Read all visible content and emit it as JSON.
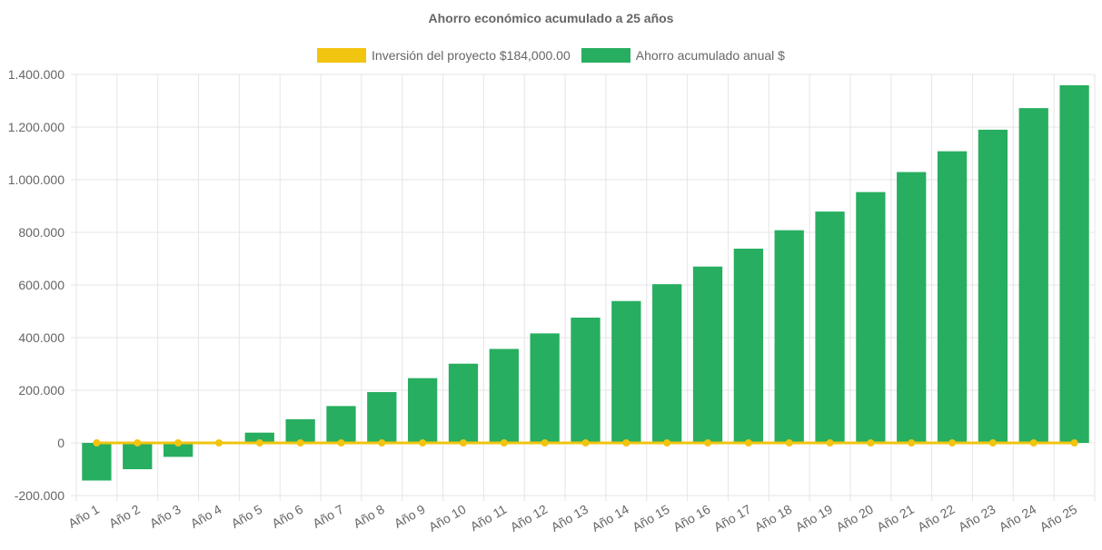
{
  "chart_data": {
    "type": "bar",
    "title": "Ahorro económico acumulado a 25 años",
    "categories": [
      "Año 1",
      "Año 2",
      "Año 3",
      "Año 4",
      "Año 5",
      "Año 6",
      "Año 7",
      "Año 8",
      "Año 9",
      "Año 10",
      "Año 11",
      "Año 12",
      "Año 13",
      "Año 14",
      "Año 15",
      "Año 16",
      "Año 17",
      "Año 18",
      "Año 19",
      "Año 20",
      "Año 21",
      "Año 22",
      "Año 23",
      "Año 24",
      "Año 25"
    ],
    "series": [
      {
        "name": "Inversión del proyecto $184,000.00",
        "type": "line",
        "color": "#f1c40f",
        "values": [
          0,
          0,
          0,
          0,
          0,
          0,
          0,
          0,
          0,
          0,
          0,
          0,
          0,
          0,
          0,
          0,
          0,
          0,
          0,
          0,
          0,
          0,
          0,
          0,
          0
        ]
      },
      {
        "name": "Ahorro acumulado anual $",
        "type": "bar",
        "color": "#27ae60",
        "values": [
          -143000,
          -100000,
          -53000,
          0,
          39000,
          90000,
          140000,
          193000,
          246000,
          301000,
          357000,
          416000,
          476000,
          539000,
          603000,
          670000,
          738000,
          808000,
          879000,
          953000,
          1029000,
          1108000,
          1190000,
          1272000,
          1359000
        ]
      }
    ],
    "y_ticks": [
      "1.400.000",
      "1.200.000",
      "1.000.000",
      "800.000",
      "600.000",
      "400.000",
      "200.000",
      "0",
      "-200.000"
    ],
    "ylim": [
      -200000,
      1400000
    ],
    "legend_position": "top",
    "grid": true
  }
}
